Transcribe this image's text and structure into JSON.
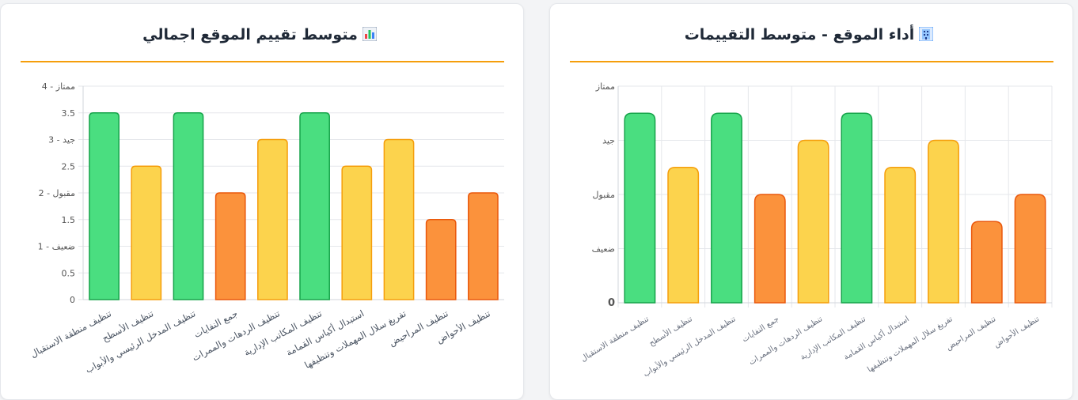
{
  "left_card": {
    "title": "متوسط تقييم الموقع اجمالي",
    "icon": "bar-chart-icon"
  },
  "right_card": {
    "title": "أداء الموقع - متوسط التقييمات",
    "icon": "building-icon"
  },
  "colors": {
    "green": "#4ade80",
    "green_border": "#16a34a",
    "yellow": "#fcd34d",
    "yellow_border": "#f59e0b",
    "orange": "#fb923c",
    "orange_border": "#ea580c",
    "accent": "#f59e0b"
  },
  "chart_data": [
    {
      "type": "bar",
      "title": "متوسط تقييم الموقع اجمالي",
      "categories": [
        "تنظيف منطقة الاستقبال",
        "تنظيف الأسطح",
        "تنظيف المدخل الرئيسي والأبواب",
        "جمع النفايات",
        "تنظيف الردهات والممرات",
        "تنظيف المكاتب الإدارية",
        "استبدال أكياس القمامة",
        "تفريغ سلال المهملات وتنظيفها",
        "تنظيف المراحيض",
        "تنظيف الأحواض"
      ],
      "values": [
        3.5,
        2.5,
        3.5,
        2,
        3,
        3.5,
        2.5,
        3,
        1.5,
        2
      ],
      "bar_colors": [
        "green",
        "yellow",
        "green",
        "orange",
        "yellow",
        "green",
        "yellow",
        "yellow",
        "orange",
        "orange"
      ],
      "ylim": [
        0,
        4
      ],
      "yticks": [
        "0",
        "ضعيف - 1",
        "0.5",
        "مقبول - 2",
        "1.5",
        "جيد - 3",
        "2.5",
        "ممتاز - 4",
        "3.5"
      ],
      "yticks_values": [
        0,
        1,
        0.5,
        2,
        1.5,
        3,
        2.5,
        4,
        3.5
      ],
      "grid": true
    },
    {
      "type": "bar",
      "title": "أداء الموقع - متوسط التقييمات",
      "categories": [
        "تنظيف منطقة الاستقبال",
        "تنظيف الأسطح",
        "تنظيف المدخل الرئيسي والأبواب",
        "جمع النفايات",
        "تنظيف الردهات والممرات",
        "تنظيف المكاتب الإدارية",
        "استبدال أكياس القمامة",
        "تفريغ سلال المهملات وتنظيفها",
        "تنظيف المراحيض",
        "تنظيف الأحواض"
      ],
      "values": [
        3.5,
        2.5,
        3.5,
        2,
        3,
        3.5,
        2.5,
        3,
        1.5,
        2
      ],
      "bar_colors": [
        "green",
        "yellow",
        "green",
        "orange",
        "yellow",
        "green",
        "yellow",
        "yellow",
        "orange",
        "orange"
      ],
      "ylim": [
        0,
        4
      ],
      "yticks": [
        "0",
        "ضعيف",
        "مقبول",
        "جيد",
        "ممتاز"
      ],
      "yticks_values": [
        0,
        1,
        2,
        3,
        4
      ],
      "grid": true
    }
  ]
}
